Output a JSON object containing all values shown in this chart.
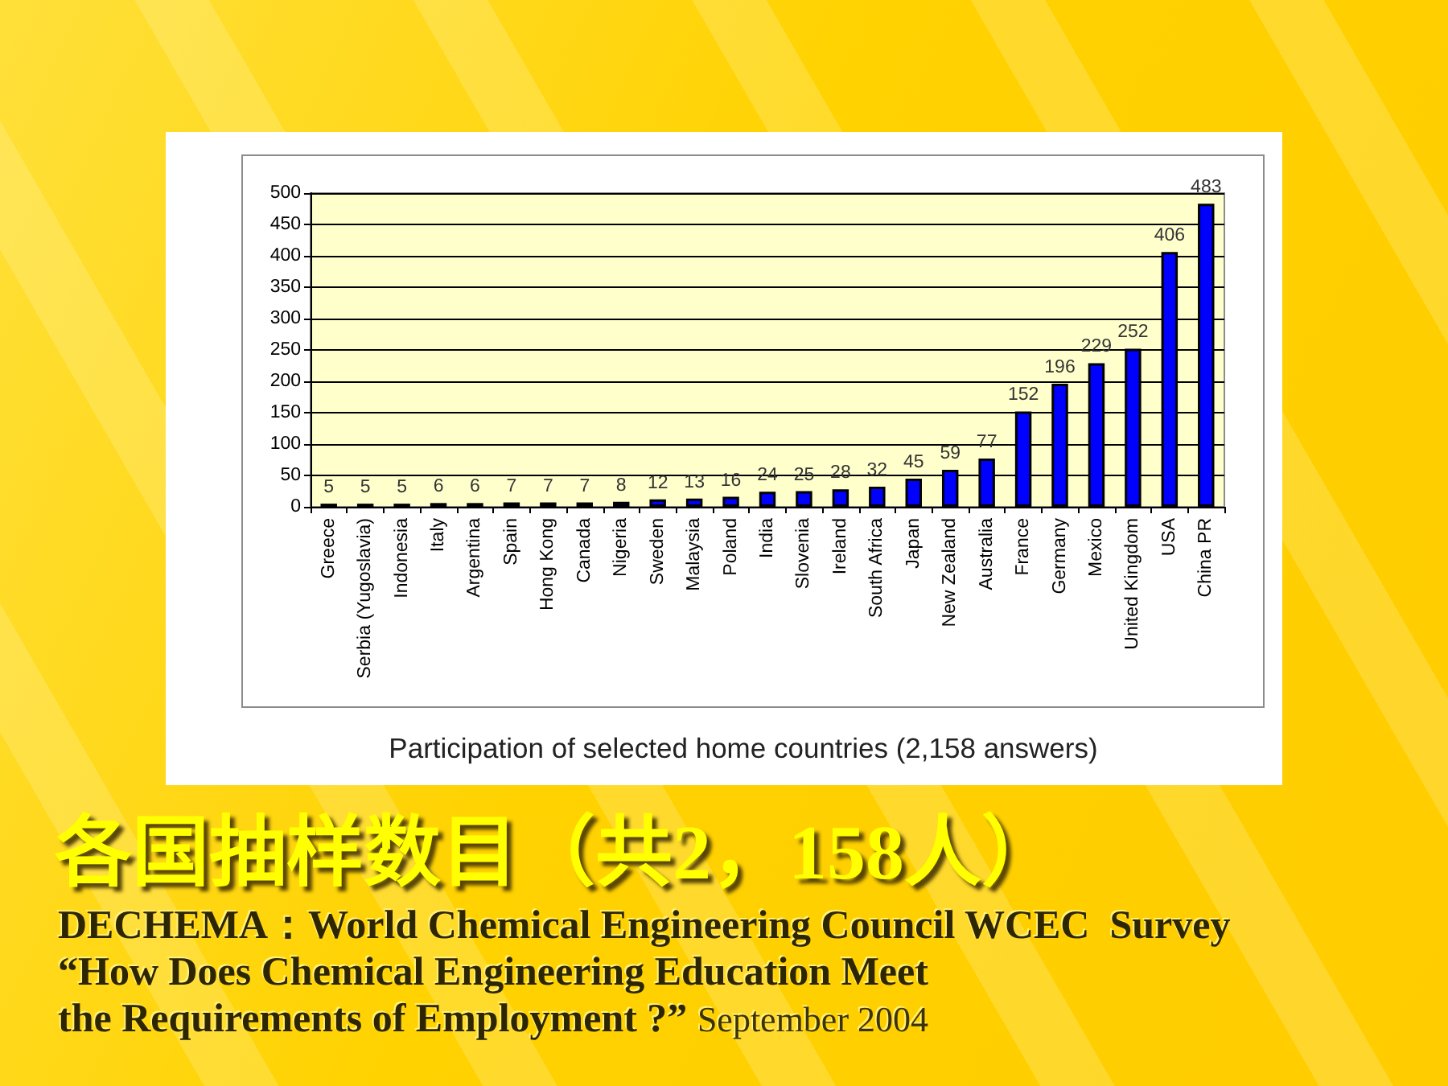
{
  "chart_data": {
    "type": "bar",
    "title": "各国抽样数目（共2，158人）",
    "categories": [
      "Greece",
      "Serbia (Yugoslavia)",
      "Indonesia",
      "Italy",
      "Argentina",
      "Spain",
      "Hong Kong",
      "Canada",
      "Nigeria",
      "Sweden",
      "Malaysia",
      "Poland",
      "India",
      "Slovenia",
      "Ireland",
      "South Africa",
      "Japan",
      "New Zealand",
      "Australia",
      "France",
      "Germany",
      "Mexico",
      "United Kingdom",
      "USA",
      "China PR"
    ],
    "values": [
      5,
      5,
      5,
      6,
      6,
      7,
      7,
      7,
      8,
      12,
      13,
      16,
      24,
      25,
      28,
      32,
      45,
      59,
      77,
      152,
      196,
      229,
      252,
      406,
      483
    ],
    "color": "#0000ff",
    "ylim": [
      0,
      500
    ],
    "yticks": [
      0,
      50,
      100,
      150,
      200,
      250,
      300,
      350,
      400,
      450,
      500
    ],
    "grid": "y",
    "data_labels": true,
    "annotations": [
      "Participation of selected home countries (2,158 answers)",
      "DECHEMA：World Chemical Engineering Council WCEC  Survey",
      "“How Does Chemical Engineering Education Meet",
      "the Requirements of Employment ?”",
      "September 2004"
    ]
  }
}
